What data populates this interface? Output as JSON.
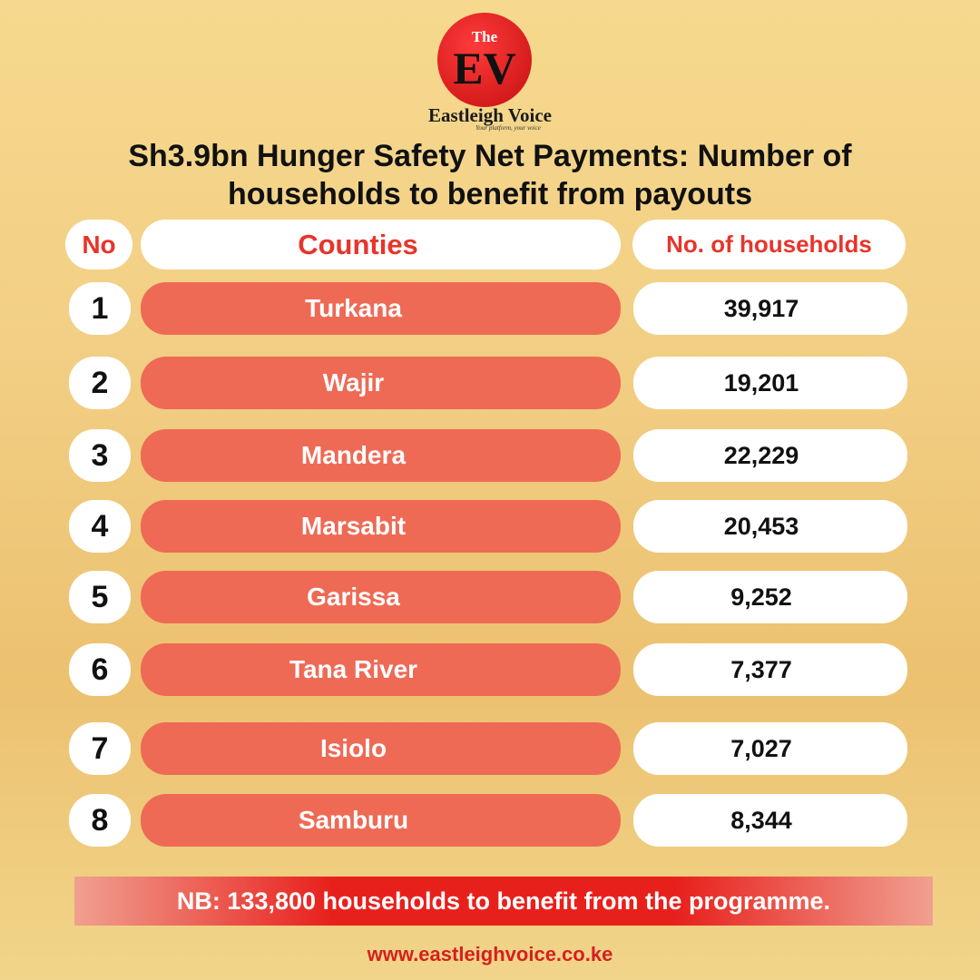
{
  "logo": {
    "the": "The",
    "mark": "EV",
    "name": "Eastleigh Voice",
    "tagline": "Your platform, your voice"
  },
  "title": [
    "Sh3.9bn Hunger Safety Net Payments: Number of",
    "households to benefit from payouts"
  ],
  "table": {
    "header": [
      "No",
      "Counties",
      "No. of households"
    ],
    "rows": [
      [
        "1",
        "Turkana",
        "39,917"
      ],
      [
        "2",
        "Wajir",
        "19,201"
      ],
      [
        "3",
        "Mandera",
        "22,229"
      ],
      [
        "4",
        "Marsabit",
        "20,453"
      ],
      [
        "5",
        "Garissa",
        "9,252"
      ],
      [
        "6",
        "Tana River",
        "7,377"
      ],
      [
        "7",
        "Isiolo",
        "7,027"
      ],
      [
        "8",
        "Samburu",
        "8,344"
      ]
    ]
  },
  "note": "NB: 133,800 households to benefit from the programme.",
  "website": "www.eastleighvoice.co.ke"
}
